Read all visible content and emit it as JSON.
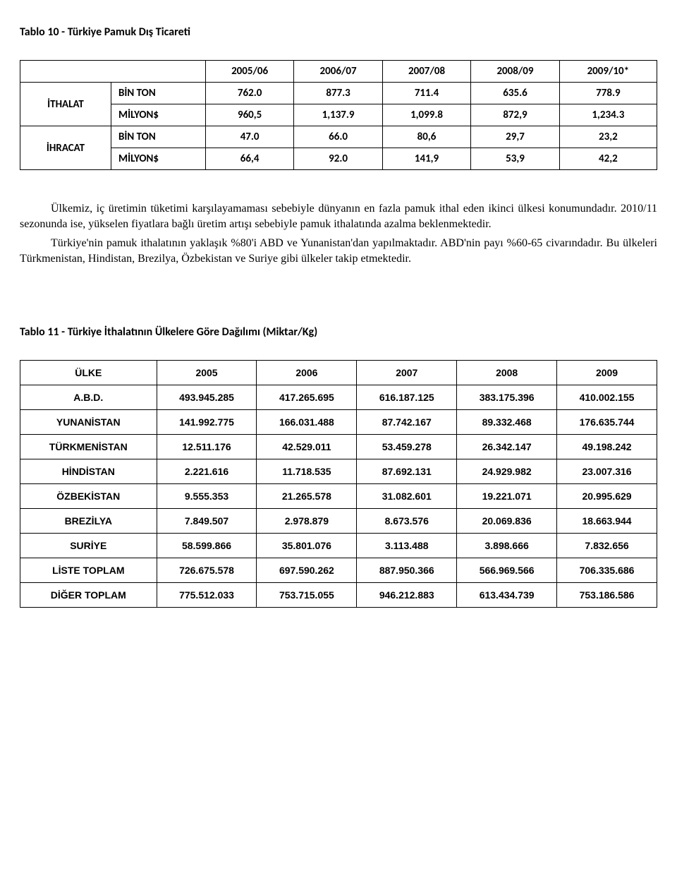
{
  "title10": "Tablo 10 - Türkiye Pamuk Dış Ticareti",
  "t10": {
    "years": [
      "2005/06",
      "2006/07",
      "2007/08",
      "2008/09",
      "2009/10*"
    ],
    "g1": "İTHALAT",
    "g2": "İHRACAT",
    "r1label": "BİN TON",
    "r1": [
      "762.0",
      "877.3",
      "711.4",
      "635.6",
      "778.9"
    ],
    "r2label": "MİLYON$",
    "r2": [
      "960,5",
      "1,137.9",
      "1,099.8",
      "872,9",
      "1,234.3"
    ],
    "r3label": "BİN TON",
    "r3": [
      "47.0",
      "66.0",
      "80,6",
      "29,7",
      "23,2"
    ],
    "r4label": "MİLYON$",
    "r4": [
      "66,4",
      "92.0",
      "141,9",
      "53,9",
      "42,2"
    ]
  },
  "p1": "Ülkemiz, iç üretimin tüketimi karşılayamaması sebebiyle dünyanın en fazla pamuk ithal eden ikinci ülkesi konumundadır. 2010/11 sezonunda ise, yükselen fiyatlara bağlı üretim artışı sebebiyle pamuk ithalatında azalma beklenmektedir.",
  "p2": "Türkiye'nin pamuk ithalatının yaklaşık %80'i ABD ve Yunanistan'dan yapılmaktadır. ABD'nin payı %60-65 civarındadır. Bu ülkeleri Türkmenistan, Hindistan, Brezilya, Özbekistan ve Suriye gibi ülkeler takip etmektedir.",
  "title11": "Tablo 11 - Türkiye İthalatının Ülkelere Göre Dağılımı (Miktar/Kg)",
  "t11": {
    "head": [
      "ÜLKE",
      "2005",
      "2006",
      "2007",
      "2008",
      "2009"
    ],
    "rows": [
      [
        "A.B.D.",
        "493.945.285",
        "417.265.695",
        "616.187.125",
        "383.175.396",
        "410.002.155"
      ],
      [
        "YUNANİSTAN",
        "141.992.775",
        "166.031.488",
        "87.742.167",
        "89.332.468",
        "176.635.744"
      ],
      [
        "TÜRKMENİSTAN",
        "12.511.176",
        "42.529.011",
        "53.459.278",
        "26.342.147",
        "49.198.242"
      ],
      [
        "HİNDİSTAN",
        "2.221.616",
        "11.718.535",
        "87.692.131",
        "24.929.982",
        "23.007.316"
      ],
      [
        "ÖZBEKİSTAN",
        "9.555.353",
        "21.265.578",
        "31.082.601",
        "19.221.071",
        "20.995.629"
      ],
      [
        "BREZİLYA",
        "7.849.507",
        "2.978.879",
        "8.673.576",
        "20.069.836",
        "18.663.944"
      ],
      [
        "SURİYE",
        "58.599.866",
        "35.801.076",
        "3.113.488",
        "3.898.666",
        "7.832.656"
      ],
      [
        "LİSTE TOPLAM",
        "726.675.578",
        "697.590.262",
        "887.950.366",
        "566.969.566",
        "706.335.686"
      ],
      [
        "DİĞER TOPLAM",
        "775.512.033",
        "753.715.055",
        "946.212.883",
        "613.434.739",
        "753.186.586"
      ]
    ]
  }
}
